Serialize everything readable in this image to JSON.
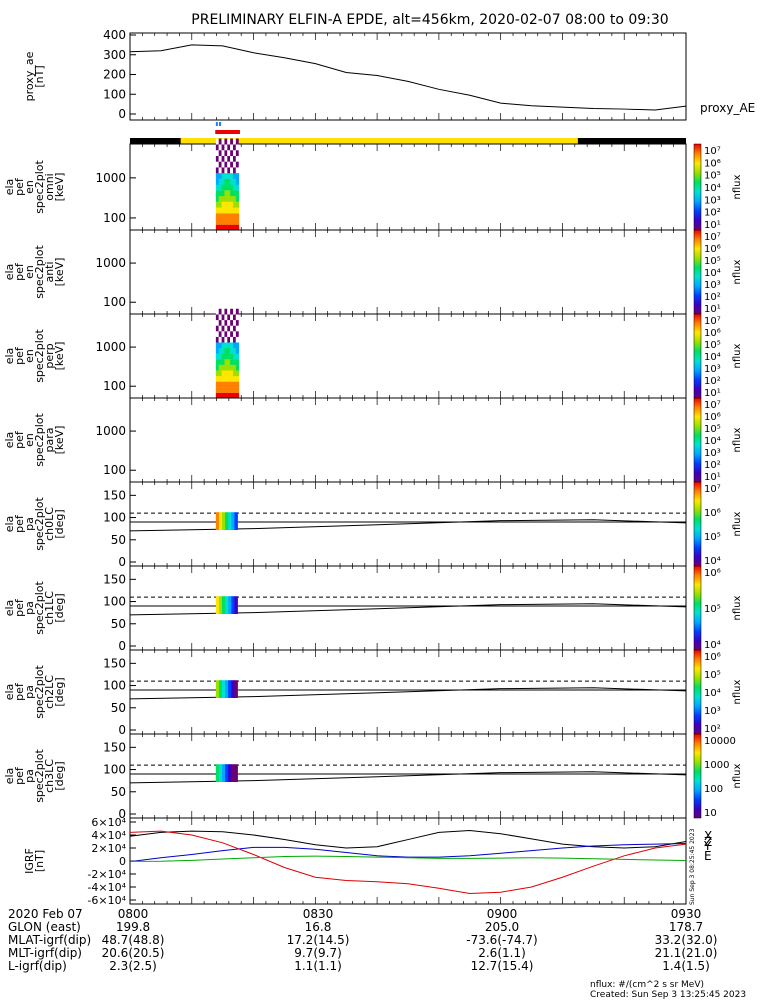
{
  "title": "PRELIMINARY ELFIN-A EPDE, alt=456km, 2020-02-07 08:00 to 09:30",
  "time_axis": {
    "labels": [
      "2020 Feb 07",
      "GLON (east)",
      "MLAT-igrf(dip)",
      "MLT-igrf(dip)",
      "L-igrf(dip)"
    ],
    "rows": [
      [
        "0800",
        "0830",
        "0900",
        "0930"
      ],
      [
        "199.8",
        "16.8",
        "205.0",
        "178.7"
      ],
      [
        "48.7(48.8)",
        "17.2(14.5)",
        "-73.6(-74.7)",
        "33.2(32.0)"
      ],
      [
        "20.6(20.5)",
        "9.7(9.7)",
        "2.6(1.1)",
        "21.1(21.0)"
      ],
      [
        "2.3(2.5)",
        "1.1(1.1)",
        "12.7(15.4)",
        "1.4(1.5)"
      ]
    ]
  },
  "footer": {
    "units": "nflux: #/(cm^2 s sr MeV)",
    "created": "Created: Sun Sep  3 13:25:45 2023",
    "side_stamp": "Sun Sep  3 08:25:45 2023"
  },
  "colors": {
    "status_day": "#ffe000",
    "status_night": "#000000",
    "science_red": "#ee0000",
    "science_blue": "#1a80ff",
    "grf_x": "#000000",
    "grf_y": "#0000cc",
    "grf_z": "#dd0000",
    "grf_total": "#00aa00"
  },
  "chart_data": [
    {
      "type": "line",
      "panel": "proxy_ae",
      "ylabel": "proxy_ae [nT]",
      "legend": "proxy_AE",
      "ylim": [
        0,
        400
      ],
      "yticks": [
        "0",
        "100",
        "200",
        "300",
        "400"
      ],
      "x_minutes": [
        0,
        5,
        10,
        15,
        20,
        25,
        30,
        35,
        40,
        45,
        50,
        55,
        60,
        65,
        70,
        75,
        80,
        85,
        90
      ],
      "values": [
        315,
        320,
        350,
        345,
        310,
        285,
        255,
        210,
        195,
        165,
        125,
        95,
        55,
        42,
        35,
        28,
        25,
        20,
        40
      ]
    },
    {
      "type": "heatmap",
      "panel": "spec2plot_omni",
      "ylabel": "ela pef en spec2plot omni [keV]",
      "scale": "log",
      "yticks": [
        "100",
        "1000"
      ],
      "colorbar": {
        "label": "nflux",
        "ticks": [
          "10¹",
          "10²",
          "10³",
          "10⁴",
          "10⁵",
          "10⁶",
          "10⁷"
        ]
      }
    },
    {
      "type": "heatmap",
      "panel": "spec2plot_anti",
      "ylabel": "ela pef en spec2plot anti [keV]",
      "scale": "log",
      "yticks": [
        "100",
        "1000"
      ],
      "colorbar": {
        "label": "nflux",
        "ticks": [
          "10¹",
          "10²",
          "10³",
          "10⁴",
          "10⁵",
          "10⁶",
          "10⁷"
        ]
      }
    },
    {
      "type": "heatmap",
      "panel": "spec2plot_perp",
      "ylabel": "ela pef en spec2plot perp [keV]",
      "scale": "log",
      "yticks": [
        "100",
        "1000"
      ],
      "colorbar": {
        "label": "nflux",
        "ticks": [
          "10¹",
          "10²",
          "10³",
          "10⁴",
          "10⁵",
          "10⁶",
          "10⁷"
        ]
      }
    },
    {
      "type": "heatmap",
      "panel": "spec2plot_para",
      "ylabel": "ela pef en spec2plot para [keV]",
      "scale": "log",
      "yticks": [
        "100",
        "1000"
      ],
      "colorbar": {
        "label": "nflux",
        "ticks": [
          "10¹",
          "10²",
          "10³",
          "10⁴",
          "10⁵",
          "10⁶",
          "10⁷"
        ]
      }
    },
    {
      "type": "heatmap",
      "panel": "spec2plot_ch0LC",
      "ylabel": "ela pef pa spec2plot ch0LC [deg]",
      "ylim": [
        0,
        180
      ],
      "yticks": [
        "0",
        "50",
        "100",
        "150"
      ],
      "colorbar": {
        "label": "nflux",
        "ticks": [
          "10⁴",
          "10⁵",
          "10⁶",
          "10⁷"
        ]
      }
    },
    {
      "type": "heatmap",
      "panel": "spec2plot_ch1LC",
      "ylabel": "ela pef pa spec2plot ch1LC [deg]",
      "ylim": [
        0,
        180
      ],
      "yticks": [
        "0",
        "50",
        "100",
        "150"
      ],
      "colorbar": {
        "label": "nflux",
        "ticks": [
          "10⁴",
          "10⁵",
          "10⁶"
        ]
      }
    },
    {
      "type": "heatmap",
      "panel": "spec2plot_ch2LC",
      "ylabel": "ela pef pa spec2plot ch2LC [deg]",
      "ylim": [
        0,
        180
      ],
      "yticks": [
        "0",
        "50",
        "100",
        "150"
      ],
      "colorbar": {
        "label": "nflux",
        "ticks": [
          "10²",
          "10³",
          "10⁴",
          "10⁵",
          "10⁶"
        ]
      }
    },
    {
      "type": "heatmap",
      "panel": "spec2plot_ch3LC",
      "ylabel": "ela pef pa spec2plot ch3LC [deg]",
      "ylim": [
        0,
        180
      ],
      "yticks": [
        "0",
        "50",
        "100",
        "150"
      ],
      "colorbar": {
        "label": "nflux",
        "ticks": [
          "10",
          "100",
          "1000",
          "10000"
        ]
      }
    },
    {
      "type": "line",
      "panel": "IGRF",
      "ylabel": "IGRF [nT]",
      "ylim": [
        -60000,
        60000
      ],
      "yticks": [
        "-6×10⁴",
        "-4×10⁴",
        "-2×10⁴",
        "0",
        "2×10⁴",
        "4×10⁴",
        "6×10⁴"
      ],
      "x_minutes": [
        0,
        5,
        10,
        15,
        20,
        25,
        30,
        35,
        40,
        45,
        50,
        55,
        60,
        65,
        70,
        75,
        80,
        85,
        90
      ],
      "series": [
        {
          "name": "X",
          "values": [
            38000,
            44000,
            46000,
            45000,
            40000,
            33000,
            25000,
            20000,
            22000,
            33000,
            44000,
            47000,
            42000,
            34000,
            26000,
            22000,
            20000,
            22000,
            30000
          ]
        },
        {
          "name": "Y",
          "values": [
            -1000,
            5000,
            10000,
            16000,
            21000,
            21000,
            18000,
            13000,
            8000,
            6000,
            6000,
            8000,
            12000,
            16000,
            20000,
            23000,
            25000,
            26000,
            27000
          ]
        },
        {
          "name": "Z",
          "values": [
            44000,
            46000,
            40000,
            28000,
            10000,
            -10000,
            -25000,
            -30000,
            -32000,
            -35000,
            -42000,
            -50000,
            -48000,
            -40000,
            -25000,
            -8000,
            8000,
            20000,
            26000
          ]
        },
        {
          "name": "",
          "values": [
            -500,
            -300,
            1000,
            3000,
            5000,
            7000,
            7500,
            7000,
            6000,
            5000,
            4000,
            4000,
            4500,
            5000,
            4500,
            3500,
            2500,
            1500,
            800
          ]
        }
      ]
    }
  ]
}
